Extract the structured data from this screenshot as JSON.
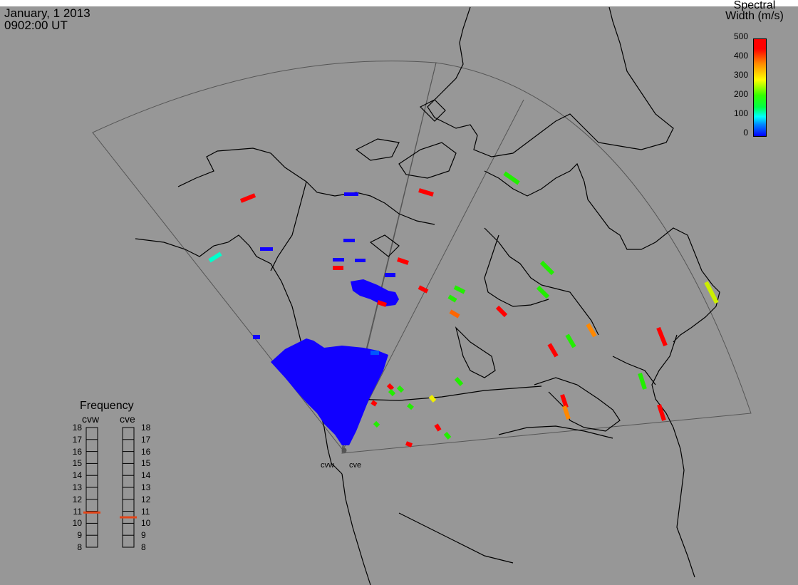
{
  "header": {
    "date": "January, 1 2013",
    "time": "0902:00 UT"
  },
  "legend": {
    "title_line1": "Spectral",
    "title_line2": "Width (m/s)",
    "ticks": [
      "500",
      "400",
      "300",
      "200",
      "100",
      "0"
    ],
    "colors": [
      "#0000ff",
      "#00ffff",
      "#00ff00",
      "#ffff00",
      "#ff8800",
      "#ff0000"
    ]
  },
  "frequency": {
    "title": "Frequency",
    "radars": [
      "cvw",
      "cve"
    ],
    "scale": [
      "18",
      "17",
      "16",
      "15",
      "14",
      "13",
      "12",
      "11",
      "10",
      "9",
      "8"
    ],
    "cvw_value_mhz": 10.9,
    "cve_value_mhz": 10.5
  },
  "radar_sites": [
    "cvw",
    "cve"
  ],
  "colors": {
    "background": "#979797",
    "coast": "#000000",
    "fov": "#555555",
    "indicator": "#e2461a"
  }
}
